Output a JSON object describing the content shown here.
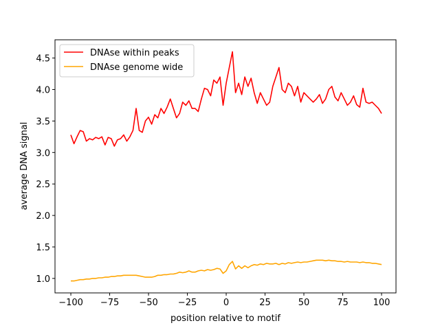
{
  "chart_data": {
    "type": "line",
    "title": "",
    "xlabel": "position relative to motif",
    "ylabel": "average DNA signal",
    "xlim": [
      -110.2,
      109.3
    ],
    "ylim": [
      0.77,
      4.79
    ],
    "xticks": [
      -100,
      -75,
      -50,
      -25,
      0,
      25,
      50,
      75,
      100
    ],
    "xtick_labels": [
      "−100",
      "−75",
      "−50",
      "−25",
      "0",
      "25",
      "50",
      "75",
      "100"
    ],
    "yticks": [
      1.0,
      1.5,
      2.0,
      2.5,
      3.0,
      3.5,
      4.0,
      4.5
    ],
    "ytick_labels": [
      "1.0",
      "1.5",
      "2.0",
      "2.5",
      "3.0",
      "3.5",
      "4.0",
      "4.5"
    ],
    "grid": false,
    "legend_position": "top-left",
    "x_start": -100,
    "x_step": 2,
    "series": [
      {
        "name": "DNAse within peaks",
        "color": "#ff0000",
        "values": [
          3.28,
          3.14,
          3.25,
          3.35,
          3.33,
          3.18,
          3.22,
          3.2,
          3.24,
          3.22,
          3.25,
          3.12,
          3.24,
          3.22,
          3.1,
          3.2,
          3.22,
          3.28,
          3.18,
          3.25,
          3.35,
          3.7,
          3.35,
          3.32,
          3.5,
          3.56,
          3.45,
          3.6,
          3.55,
          3.7,
          3.62,
          3.72,
          3.85,
          3.7,
          3.55,
          3.62,
          3.8,
          3.75,
          3.82,
          3.7,
          3.7,
          3.65,
          3.85,
          4.02,
          4.0,
          3.9,
          4.15,
          4.1,
          4.2,
          3.75,
          4.1,
          4.35,
          4.6,
          3.95,
          4.1,
          3.92,
          4.2,
          4.05,
          4.18,
          3.95,
          3.78,
          3.95,
          3.85,
          3.75,
          3.8,
          4.05,
          4.2,
          4.35,
          4.0,
          3.95,
          4.1,
          4.05,
          3.9,
          4.05,
          3.8,
          3.95,
          3.9,
          3.85,
          3.8,
          3.85,
          3.92,
          3.78,
          3.85,
          4.0,
          4.05,
          3.88,
          3.82,
          3.95,
          3.85,
          3.75,
          3.8,
          3.9,
          3.76,
          3.72,
          4.02,
          3.8,
          3.78,
          3.8,
          3.75,
          3.7,
          3.62
        ]
      },
      {
        "name": "DNAse genome wide",
        "color": "#ffa500",
        "values": [
          0.96,
          0.96,
          0.97,
          0.98,
          0.98,
          0.99,
          0.99,
          1.0,
          1.0,
          1.01,
          1.01,
          1.02,
          1.02,
          1.03,
          1.03,
          1.04,
          1.04,
          1.05,
          1.05,
          1.05,
          1.05,
          1.05,
          1.04,
          1.03,
          1.02,
          1.02,
          1.02,
          1.03,
          1.05,
          1.05,
          1.06,
          1.06,
          1.07,
          1.07,
          1.08,
          1.1,
          1.09,
          1.1,
          1.12,
          1.1,
          1.1,
          1.12,
          1.13,
          1.12,
          1.14,
          1.13,
          1.14,
          1.16,
          1.15,
          1.08,
          1.12,
          1.22,
          1.27,
          1.15,
          1.2,
          1.16,
          1.2,
          1.17,
          1.2,
          1.22,
          1.21,
          1.23,
          1.22,
          1.24,
          1.23,
          1.23,
          1.24,
          1.22,
          1.24,
          1.23,
          1.25,
          1.24,
          1.25,
          1.26,
          1.25,
          1.26,
          1.26,
          1.27,
          1.28,
          1.29,
          1.29,
          1.29,
          1.28,
          1.29,
          1.28,
          1.28,
          1.27,
          1.27,
          1.26,
          1.27,
          1.26,
          1.26,
          1.26,
          1.25,
          1.26,
          1.25,
          1.25,
          1.24,
          1.24,
          1.23,
          1.22
        ]
      }
    ]
  }
}
